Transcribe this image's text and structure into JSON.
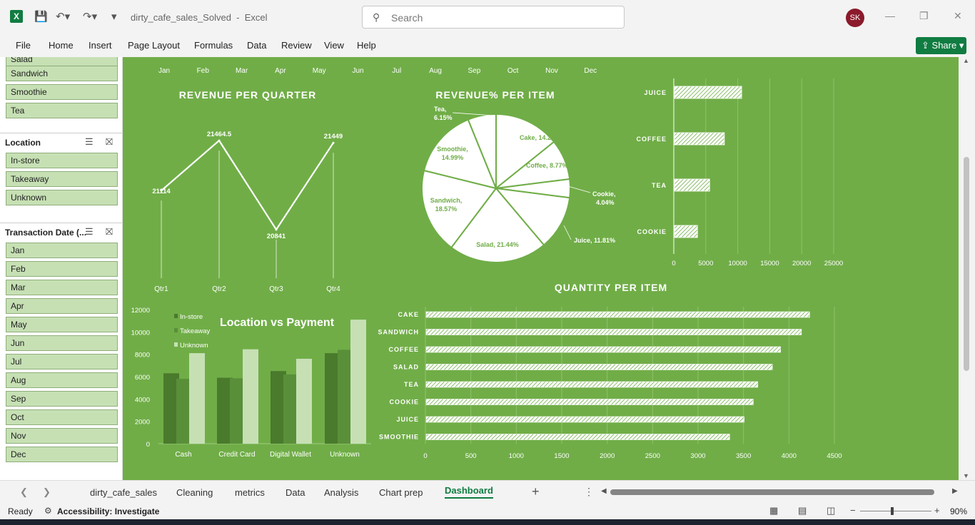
{
  "titlebar": {
    "file_name": "dirty_cafe_sales_Solved",
    "app_name": "Excel",
    "search_placeholder": "Search",
    "avatar_initials": "SK"
  },
  "menu": [
    "File",
    "Home",
    "Insert",
    "Page Layout",
    "Formulas",
    "Data",
    "Review",
    "View",
    "Help"
  ],
  "share_label": "Share",
  "slicers": {
    "item_partial": "Salad",
    "items": [
      "Sandwich",
      "Smoothie",
      "Tea"
    ],
    "location": {
      "title": "Location",
      "items": [
        "In-store",
        "Takeaway",
        "Unknown"
      ]
    },
    "date": {
      "title": "Transaction Date (...",
      "items": [
        "Jan",
        "Feb",
        "Mar",
        "Apr",
        "May",
        "Jun",
        "Jul",
        "Aug",
        "Sep",
        "Oct",
        "Nov",
        "Dec"
      ]
    }
  },
  "timeline_months": [
    "Jan",
    "Feb",
    "Mar",
    "Apr",
    "May",
    "Jun",
    "Jul",
    "Aug",
    "Sep",
    "Oct",
    "Nov",
    "Dec"
  ],
  "chart_data": [
    {
      "type": "line",
      "title": "REVENUE PER QUARTER",
      "categories": [
        "Qtr1",
        "Qtr2",
        "Qtr3",
        "Qtr4"
      ],
      "values": [
        21114,
        21464.5,
        20841,
        21449
      ],
      "data_labels": [
        "21114",
        "21464.5",
        "20841",
        "21449"
      ]
    },
    {
      "type": "pie",
      "title": "REVENUE%  PER ITEM",
      "slices": [
        {
          "label": "Cake, 14.23%",
          "value": 14.23
        },
        {
          "label": "Coffee, 8.77%",
          "value": 8.77
        },
        {
          "label": "Cookie, 4.04%",
          "value": 4.04
        },
        {
          "label": "Juice, 11.81%",
          "value": 11.81
        },
        {
          "label": "Salad, 21.44%",
          "value": 21.44
        },
        {
          "label": "Sandwich, 18.57%",
          "value": 18.57
        },
        {
          "label": "Smoothie, 14.99%",
          "value": 14.99
        },
        {
          "label": "Tea, 6.15%",
          "value": 6.15
        }
      ]
    },
    {
      "type": "bar",
      "orientation": "horizontal",
      "title": "",
      "categories": [
        "JUICE",
        "COFFEE",
        "TEA",
        "COOKIE"
      ],
      "values": [
        10500,
        7800,
        5500,
        3600
      ],
      "xlim": [
        0,
        25000
      ],
      "x_ticks": [
        "0",
        "5000",
        "10000",
        "15000",
        "20000",
        "25000"
      ]
    },
    {
      "type": "bar",
      "title": "Location vs Payment",
      "categories": [
        "Cash",
        "Credit Card",
        "Digital Wallet",
        "Unknown"
      ],
      "series": [
        {
          "name": "In-store",
          "values": [
            6300,
            5900,
            6500,
            8100
          ]
        },
        {
          "name": "Takeaway",
          "values": [
            5800,
            5850,
            6200,
            8400
          ]
        },
        {
          "name": "Unknown",
          "values": [
            8100,
            8450,
            7600,
            11100
          ]
        }
      ],
      "ylim": [
        0,
        12000
      ],
      "y_ticks": [
        "0",
        "2000",
        "4000",
        "6000",
        "8000",
        "10000",
        "12000"
      ]
    },
    {
      "type": "bar",
      "orientation": "horizontal",
      "title": "QUANTITY PER ITEM",
      "categories": [
        "CAKE",
        "SANDWICH",
        "COFFEE",
        "SALAD",
        "TEA",
        "COOKIE",
        "JUICE",
        "SMOOTHIE"
      ],
      "values": [
        4220,
        4130,
        3900,
        3810,
        3650,
        3600,
        3500,
        3340
      ],
      "xlim": [
        0,
        4500
      ],
      "x_ticks": [
        "0",
        "500",
        "1000",
        "1500",
        "2000",
        "2500",
        "3000",
        "3500",
        "4000",
        "4500"
      ]
    }
  ],
  "sheet_tabs": [
    "dirty_cafe_sales",
    "Cleaning",
    "metrics",
    "Data",
    "Analysis",
    "Chart prep",
    "Dashboard"
  ],
  "active_tab": "Dashboard",
  "status": {
    "ready": "Ready",
    "accessibility": "Accessibility: Investigate",
    "zoom": "90%"
  },
  "colors": {
    "dashboard_bg": "#70ad47",
    "slicer_fill": "#c6e0b4",
    "excel_green": "#107c41",
    "series_dark": "#4a7a2c",
    "series_mid": "#5a8f39",
    "series_light": "#c6e0b4"
  }
}
